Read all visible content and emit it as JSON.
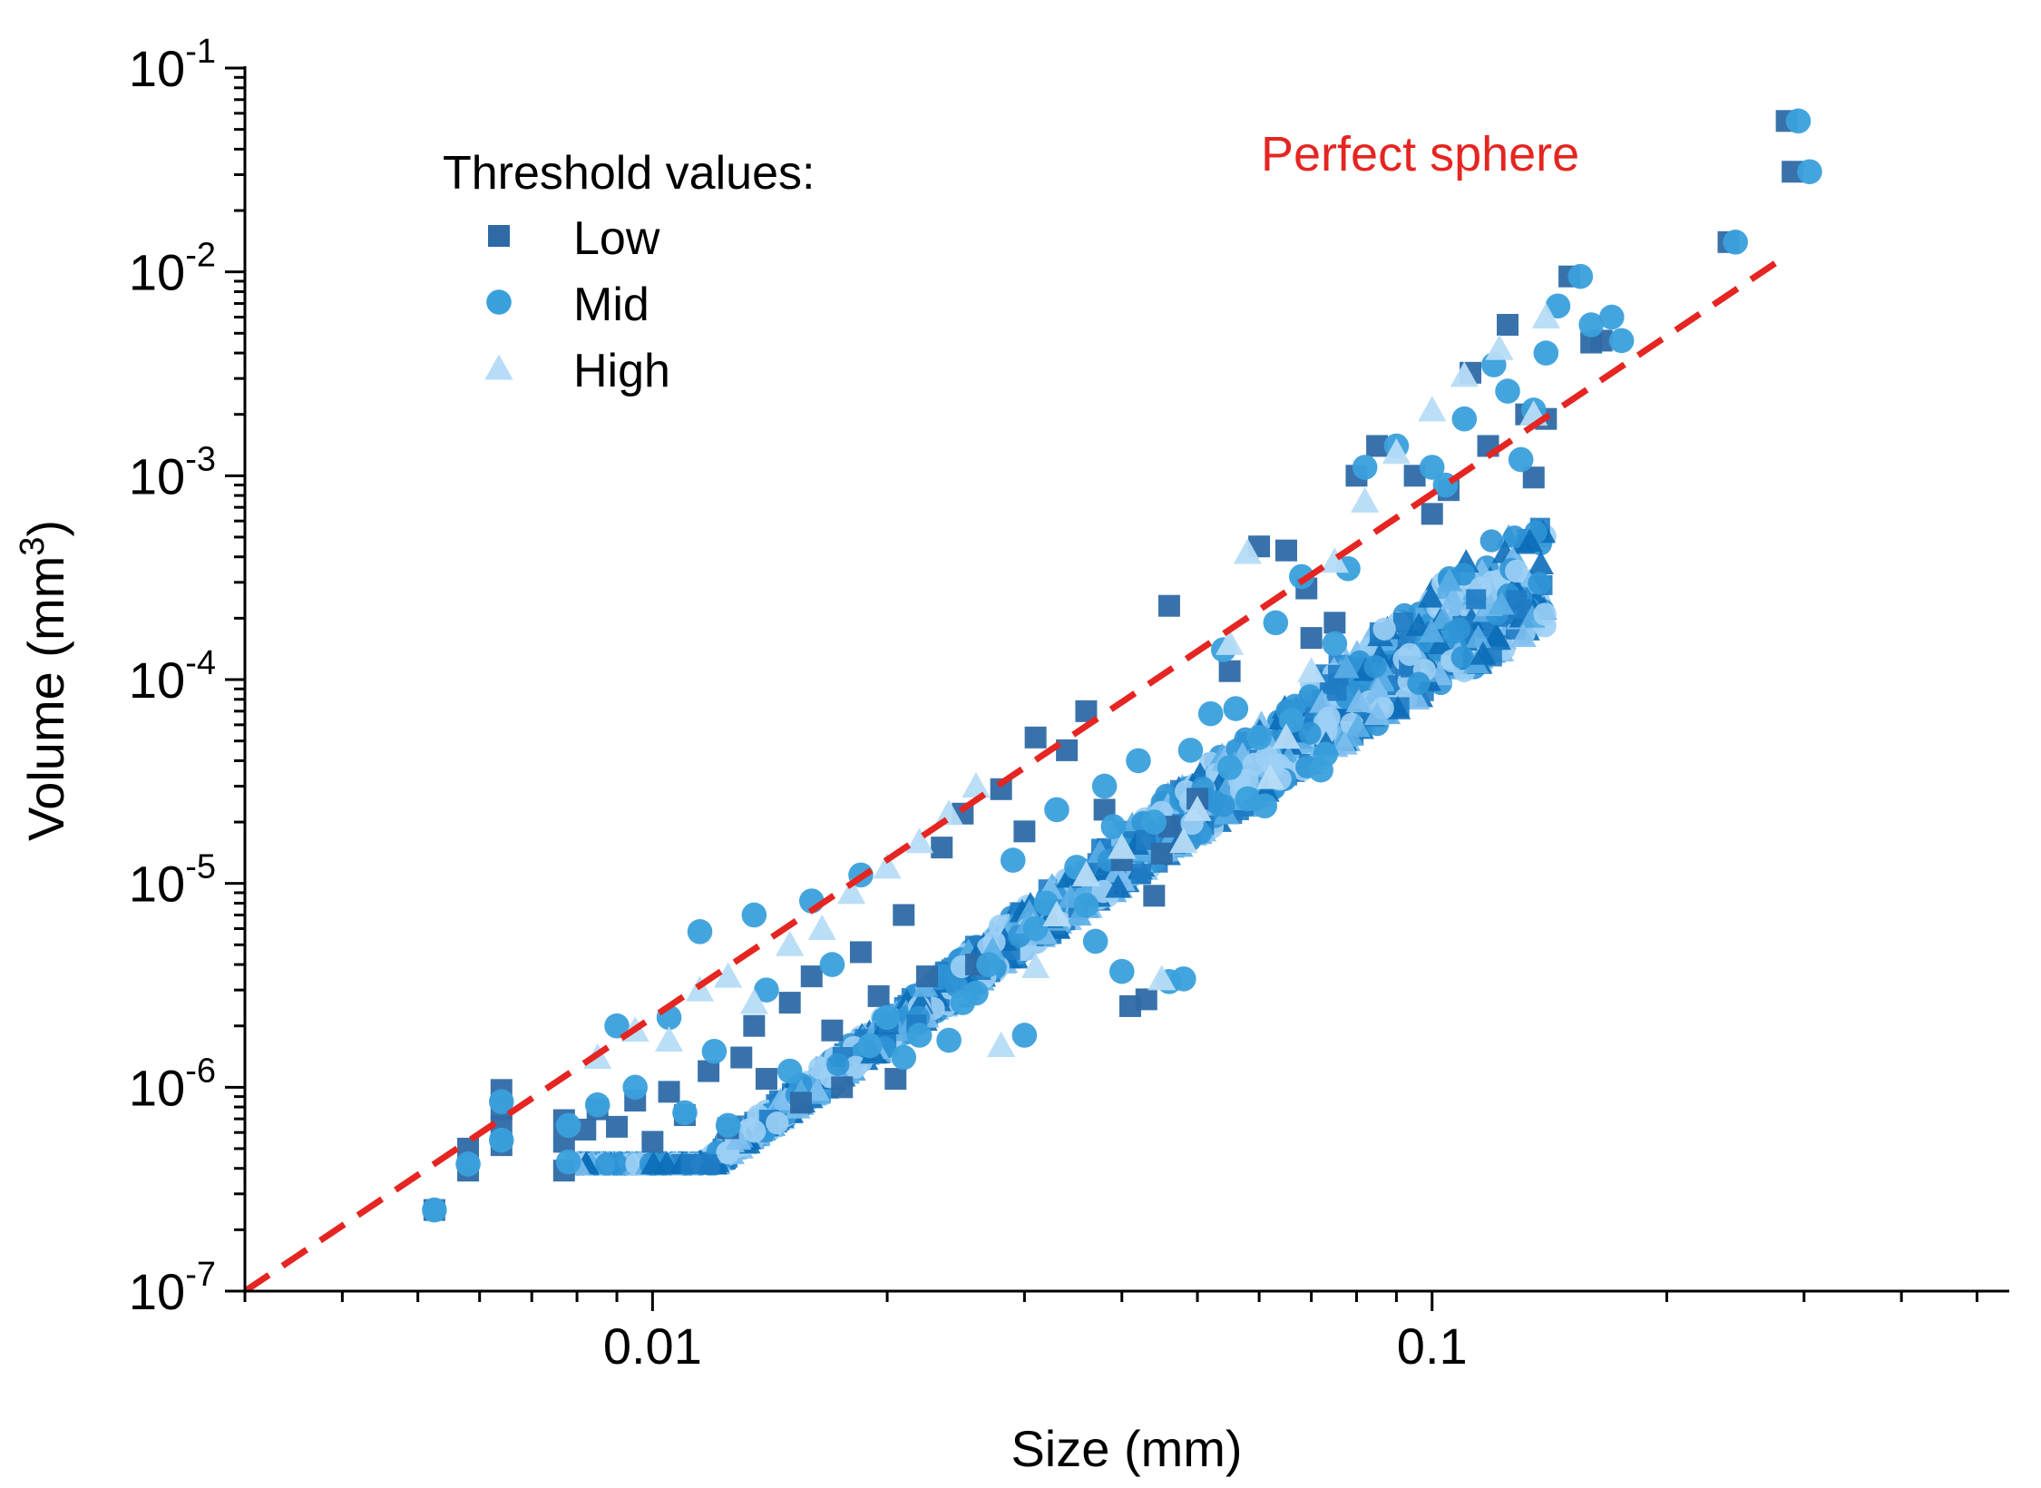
{
  "chart_data": {
    "type": "scatter",
    "title": "",
    "xlabel": "Size (mm)",
    "ylabel": "Volume (mm³)",
    "ylabel_parts": {
      "main": "Volume (mm",
      "sup": "3",
      "close": ")"
    },
    "xscale": "log",
    "yscale": "log",
    "xlim": [
      0.003,
      0.55
    ],
    "ylim": [
      1e-07,
      0.1
    ],
    "x_tick_labels": [
      {
        "value": 0.01,
        "label": "0.01"
      },
      {
        "value": 0.1,
        "label": "0.1"
      }
    ],
    "y_tick_labels": [
      {
        "value": 1e-07,
        "base": "10",
        "exp": "-7"
      },
      {
        "value": 1e-06,
        "base": "10",
        "exp": "-6"
      },
      {
        "value": 1e-05,
        "base": "10",
        "exp": "-5"
      },
      {
        "value": 0.0001,
        "base": "10",
        "exp": "-4"
      },
      {
        "value": 0.001,
        "base": "10",
        "exp": "-3"
      },
      {
        "value": 0.01,
        "base": "10",
        "exp": "-2"
      },
      {
        "value": 0.1,
        "base": "10",
        "exp": "-1"
      }
    ],
    "legend_title": "Threshold values:",
    "legend_position": "top-left",
    "series": [
      {
        "name": "Low",
        "marker": "square",
        "color": "#2e6aa6",
        "points": [
          [
            0.00525,
            2.5e-07
          ],
          [
            0.0058,
            3.9e-07
          ],
          [
            0.0058,
            5e-07
          ],
          [
            0.0064,
            5.2e-07
          ],
          [
            0.0064,
            6.4e-07
          ],
          [
            0.0064,
            7.8e-07
          ],
          [
            0.0064,
            9.7e-07
          ],
          [
            0.0077,
            3.9e-07
          ],
          [
            0.0077,
            5.4e-07
          ],
          [
            0.0077,
            6.9e-07
          ],
          [
            0.0082,
            6.2e-07
          ],
          [
            0.0085,
            7.8e-07
          ],
          [
            0.009,
            6.4e-07
          ],
          [
            0.0095,
            8.6e-07
          ],
          [
            0.01,
            5.4e-07
          ],
          [
            0.0105,
            9.5e-07
          ],
          [
            0.011,
            7.3e-07
          ],
          [
            0.0118,
            1.2e-06
          ],
          [
            0.0125,
            6.3e-07
          ],
          [
            0.013,
            1.4e-06
          ],
          [
            0.0135,
            2e-06
          ],
          [
            0.014,
            1.1e-06
          ],
          [
            0.015,
            2.6e-06
          ],
          [
            0.0155,
            8.4e-07
          ],
          [
            0.016,
            3.5e-06
          ],
          [
            0.017,
            1.9e-06
          ],
          [
            0.0175,
            1e-06
          ],
          [
            0.0185,
            4.6e-06
          ],
          [
            0.0195,
            2.8e-06
          ],
          [
            0.0205,
            1.1e-06
          ],
          [
            0.021,
            7e-06
          ],
          [
            0.0225,
            3.5e-06
          ],
          [
            0.0235,
            1.5e-05
          ],
          [
            0.025,
            2.2e-05
          ],
          [
            0.026,
            4e-06
          ],
          [
            0.028,
            2.9e-05
          ],
          [
            0.03,
            1.8e-05
          ],
          [
            0.031,
            5.2e-05
          ],
          [
            0.034,
            4.5e-05
          ],
          [
            0.036,
            7e-05
          ],
          [
            0.038,
            2.3e-05
          ],
          [
            0.04,
            1.3e-05
          ],
          [
            0.041,
            2.5e-06
          ],
          [
            0.043,
            2.7e-06
          ],
          [
            0.044,
            8.7e-06
          ],
          [
            0.045,
            1.4e-05
          ],
          [
            0.046,
            1.9e-05
          ],
          [
            0.046,
            0.00023
          ],
          [
            0.05,
            2.6e-05
          ],
          [
            0.055,
            0.00011
          ],
          [
            0.06,
            0.00045
          ],
          [
            0.065,
            0.00043
          ],
          [
            0.069,
            0.00028
          ],
          [
            0.07,
            0.00016
          ],
          [
            0.075,
            0.00019
          ],
          [
            0.08,
            0.001
          ],
          [
            0.085,
            0.0014
          ],
          [
            0.095,
            0.001
          ],
          [
            0.1,
            0.00065
          ],
          [
            0.105,
            0.00085
          ],
          [
            0.112,
            0.0032
          ],
          [
            0.118,
            0.0014
          ],
          [
            0.125,
            0.0055
          ],
          [
            0.132,
            0.002
          ],
          [
            0.135,
            0.00098
          ],
          [
            0.14,
            0.0019
          ],
          [
            0.15,
            0.0095
          ],
          [
            0.16,
            0.0045
          ],
          [
            0.165,
            0.0046
          ],
          [
            0.24,
            0.014
          ],
          [
            0.285,
            0.055
          ],
          [
            0.29,
            0.031
          ]
        ]
      },
      {
        "name": "Mid",
        "marker": "circle",
        "color": "#3aa0dc",
        "points": [
          [
            0.00525,
            2.5e-07
          ],
          [
            0.0058,
            4.2e-07
          ],
          [
            0.0064,
            5.5e-07
          ],
          [
            0.0064,
            8.5e-07
          ],
          [
            0.0078,
            4.3e-07
          ],
          [
            0.0078,
            6.5e-07
          ],
          [
            0.0085,
            8.2e-07
          ],
          [
            0.009,
            2e-06
          ],
          [
            0.0095,
            1e-06
          ],
          [
            0.0105,
            2.2e-06
          ],
          [
            0.011,
            7.5e-07
          ],
          [
            0.0115,
            5.8e-06
          ],
          [
            0.012,
            1.5e-06
          ],
          [
            0.0125,
            6.5e-07
          ],
          [
            0.0135,
            7e-06
          ],
          [
            0.014,
            3e-06
          ],
          [
            0.015,
            1.2e-06
          ],
          [
            0.016,
            8.2e-06
          ],
          [
            0.017,
            4e-06
          ],
          [
            0.0185,
            1.1e-05
          ],
          [
            0.019,
            1.6e-06
          ],
          [
            0.02,
            2.2e-06
          ],
          [
            0.021,
            1.4e-06
          ],
          [
            0.022,
            1.8e-06
          ],
          [
            0.024,
            1.7e-06
          ],
          [
            0.025,
            2.6e-06
          ],
          [
            0.026,
            2.9e-06
          ],
          [
            0.027,
            4e-06
          ],
          [
            0.029,
            1.3e-05
          ],
          [
            0.03,
            1.8e-06
          ],
          [
            0.031,
            6e-06
          ],
          [
            0.032,
            8e-06
          ],
          [
            0.033,
            2.3e-05
          ],
          [
            0.035,
            1.2e-05
          ],
          [
            0.036,
            7.8e-06
          ],
          [
            0.037,
            5.2e-06
          ],
          [
            0.038,
            3e-05
          ],
          [
            0.039,
            1.9e-05
          ],
          [
            0.04,
            3.7e-06
          ],
          [
            0.042,
            4e-05
          ],
          [
            0.044,
            2e-05
          ],
          [
            0.046,
            3.3e-06
          ],
          [
            0.048,
            3.4e-06
          ],
          [
            0.049,
            4.5e-05
          ],
          [
            0.052,
            6.8e-05
          ],
          [
            0.054,
            0.00014
          ],
          [
            0.055,
            3.7e-05
          ],
          [
            0.056,
            7.2e-05
          ],
          [
            0.058,
            2.6e-05
          ],
          [
            0.06,
            5.2e-05
          ],
          [
            0.061,
            2.4e-05
          ],
          [
            0.063,
            0.00019
          ],
          [
            0.066,
            6.3e-05
          ],
          [
            0.068,
            0.00032
          ],
          [
            0.072,
            3.6e-05
          ],
          [
            0.073,
            4.3e-05
          ],
          [
            0.075,
            0.00015
          ],
          [
            0.078,
            0.00035
          ],
          [
            0.082,
            0.0011
          ],
          [
            0.09,
            0.0014
          ],
          [
            0.1,
            0.0011
          ],
          [
            0.104,
            0.0009
          ],
          [
            0.11,
            0.0019
          ],
          [
            0.12,
            0.0035
          ],
          [
            0.125,
            0.0026
          ],
          [
            0.13,
            0.0012
          ],
          [
            0.135,
            0.0021
          ],
          [
            0.14,
            0.004
          ],
          [
            0.145,
            0.0068
          ],
          [
            0.155,
            0.0095
          ],
          [
            0.16,
            0.0055
          ],
          [
            0.17,
            0.006
          ],
          [
            0.175,
            0.0046
          ],
          [
            0.245,
            0.014
          ],
          [
            0.295,
            0.055
          ],
          [
            0.305,
            0.031
          ]
        ]
      },
      {
        "name": "High",
        "marker": "triangle",
        "color": "#b7dcf7",
        "points": [
          [
            0.0085,
            1.4e-06
          ],
          [
            0.0095,
            1.9e-06
          ],
          [
            0.0105,
            1.7e-06
          ],
          [
            0.0115,
            3e-06
          ],
          [
            0.0125,
            3.5e-06
          ],
          [
            0.0135,
            2.6e-06
          ],
          [
            0.015,
            5e-06
          ],
          [
            0.0165,
            6e-06
          ],
          [
            0.018,
            9e-06
          ],
          [
            0.02,
            1.2e-05
          ],
          [
            0.022,
            1.6e-05
          ],
          [
            0.024,
            2.2e-05
          ],
          [
            0.026,
            3e-05
          ],
          [
            0.028,
            1.6e-06
          ],
          [
            0.031,
            3.9e-06
          ],
          [
            0.033,
            7e-06
          ],
          [
            0.036,
            1.1e-05
          ],
          [
            0.04,
            1.5e-05
          ],
          [
            0.045,
            3.4e-06
          ],
          [
            0.048,
            1.6e-05
          ],
          [
            0.05,
            2.3e-05
          ],
          [
            0.055,
            0.00015
          ],
          [
            0.058,
            0.00042
          ],
          [
            0.062,
            3.3e-05
          ],
          [
            0.065,
            5.2e-05
          ],
          [
            0.07,
            0.00011
          ],
          [
            0.075,
            0.00038
          ],
          [
            0.082,
            0.00075
          ],
          [
            0.09,
            0.0013
          ],
          [
            0.1,
            0.0021
          ],
          [
            0.11,
            0.0031
          ],
          [
            0.122,
            0.0042
          ],
          [
            0.135,
            0.002
          ],
          [
            0.14,
            0.006
          ]
        ]
      }
    ],
    "dense_band": {
      "description": "dense overlapping markers following the sphere-like trend",
      "x_range": [
        0.008,
        0.14
      ],
      "upper_factor": 0.55,
      "lower_factor_start": 0.5,
      "lower_factor_end": 0.12
    },
    "reference_line": {
      "label": "Perfect sphere",
      "color": "#e52521",
      "style": "dashed",
      "relation": "V = (π/6)·d³",
      "x_range": [
        0.003,
        0.28
      ]
    }
  }
}
